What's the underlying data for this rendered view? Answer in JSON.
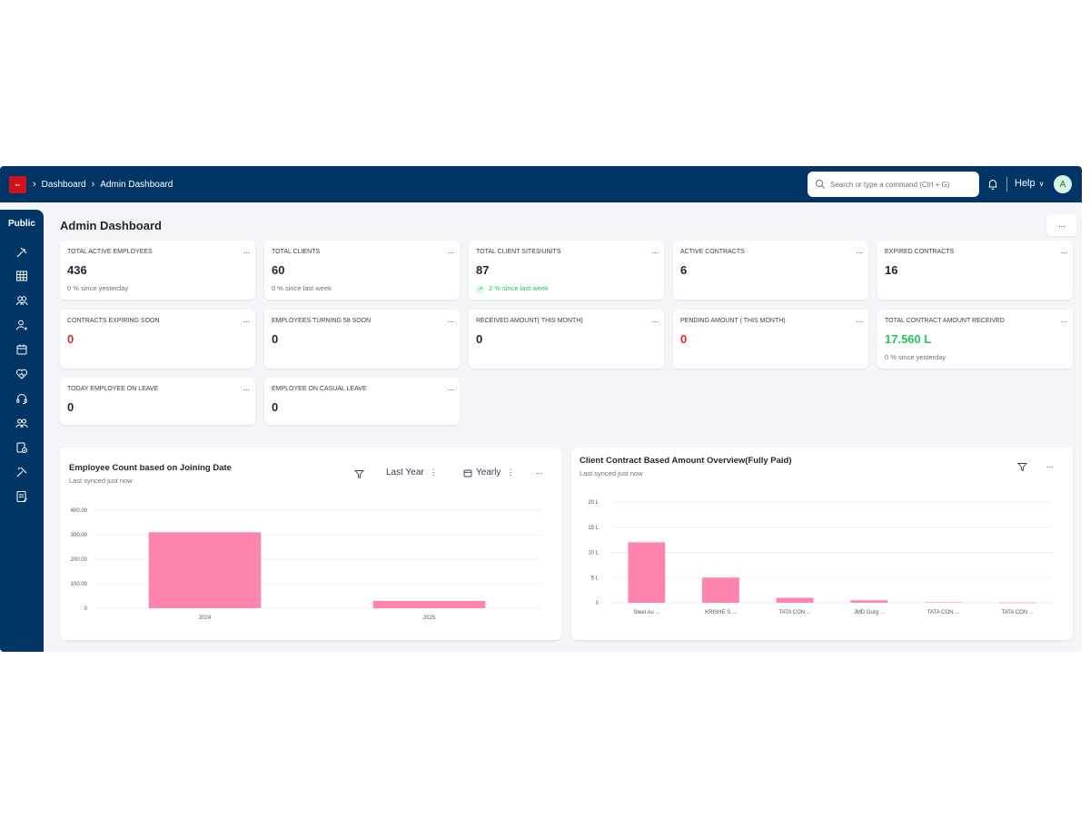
{
  "navbar": {
    "logo_text": "tbc",
    "breadcrumbs": [
      "Dashboard",
      "Admin Dashboard"
    ],
    "search_placeholder": "Search or type a command (Ctrl + G)",
    "help_label": "Help",
    "avatar_initial": "A"
  },
  "sidebar": {
    "workspace_label": "Public",
    "icons": [
      "tools-icon",
      "table-icon",
      "users-icon",
      "user-add-icon",
      "calendar-icon",
      "heart-icon",
      "headset-icon",
      "group-icon",
      "document-check-icon",
      "tools-alt-icon",
      "report-icon"
    ]
  },
  "page": {
    "title": "Admin Dashboard",
    "menu_label": "..."
  },
  "cards": [
    {
      "label": "TOTAL ACTIVE EMPLOYEES",
      "value": "436",
      "sub": "0 % since yesterday",
      "value_color": "default",
      "sub_color": "default"
    },
    {
      "label": "TOTAL CLIENTS",
      "value": "60",
      "sub": "0 % since last week",
      "value_color": "default",
      "sub_color": "default"
    },
    {
      "label": "TOTAL CLIENT SITES/UNITS",
      "value": "87",
      "sub": "2 % since last week",
      "value_color": "default",
      "sub_color": "green",
      "trend": "up"
    },
    {
      "label": "ACTIVE CONTRACTS",
      "value": "6",
      "sub": "",
      "value_color": "default"
    },
    {
      "label": "EXPIRED CONTRACTS",
      "value": "16",
      "sub": "",
      "value_color": "default"
    },
    {
      "label": "CONTRACTS EXPIRING SOON",
      "value": "0",
      "sub": "",
      "value_color": "red"
    },
    {
      "label": "EMPLOYEES TURNING 58 SOON",
      "value": "0",
      "sub": "",
      "value_color": "default"
    },
    {
      "label": "RECEIVED AMOUNT( THIS MONTH)",
      "value": "0",
      "sub": "",
      "value_color": "default"
    },
    {
      "label": "PENDING AMOUNT ( THIS MONTH)",
      "value": "0",
      "sub": "",
      "value_color": "red"
    },
    {
      "label": "TOTAL CONTRACT AMOUNT RECEIVED",
      "value": "17.560 L",
      "sub": "0 % since yesterday",
      "value_color": "green"
    },
    {
      "label": "TODAY EMPLOYEE ON LEAVE",
      "value": "0",
      "sub": "",
      "value_color": "default"
    },
    {
      "label": "EMPLOYEE ON CASUAL LEAVE",
      "value": "0",
      "sub": "",
      "value_color": "default"
    }
  ],
  "card_menu_label": "...",
  "colors": {
    "navbar": "#003566",
    "bar": "#ff85ad",
    "red": "#e02424",
    "green": "#22c55e"
  },
  "charts": {
    "left": {
      "title": "Employee Count based on Joining Date",
      "sub": "Last synced just now",
      "period_label": "Last Year",
      "interval_label": "Yearly",
      "menu_label": "..."
    },
    "right": {
      "title": "Client Contract Based Amount Overview(Fully Paid)",
      "sub": "Last synced just now",
      "menu_label": "..."
    }
  },
  "chart_data": [
    {
      "type": "bar",
      "title": "Employee Count based on Joining Date",
      "categories": [
        "2024",
        "2025"
      ],
      "values": [
        310,
        30
      ],
      "ylim": [
        0,
        400
      ],
      "yticks": [
        "400.00",
        "300.00",
        "200.00",
        "100.00",
        "0"
      ],
      "ytick_values": [
        400,
        300,
        200,
        100,
        0
      ],
      "grid": true
    },
    {
      "type": "bar",
      "title": "Client Contract Based Amount Overview(Fully Paid)",
      "categories": [
        "Steel Au ...",
        "KRISHE S ...",
        "TATA CON ...",
        "JMD Gurg ...",
        "TATA CON ...",
        "TATA CON ..."
      ],
      "values": [
        12,
        5,
        1,
        0.5,
        0.1,
        0.05
      ],
      "ylim": [
        0,
        20
      ],
      "yticks": [
        "20 L",
        "15 L",
        "10 L",
        "5 L",
        "0"
      ],
      "ytick_values": [
        20,
        15,
        10,
        5,
        0
      ],
      "grid": true
    }
  ]
}
